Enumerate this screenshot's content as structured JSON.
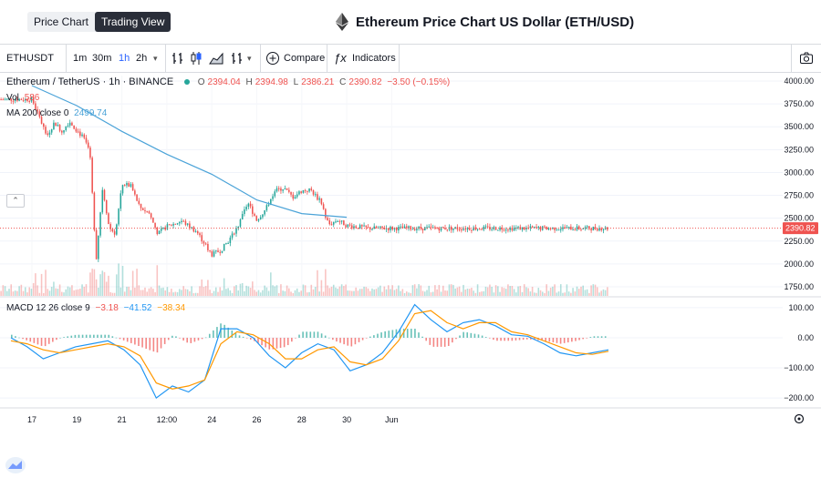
{
  "header": {
    "tabs": [
      {
        "label": "Price Chart",
        "active": false
      },
      {
        "label": "Trading View",
        "active": true
      }
    ],
    "title": "Ethereum Price Chart US Dollar (ETH/USD)"
  },
  "toolbar": {
    "symbol": "ETHUSDT",
    "intervals": [
      "1m",
      "30m",
      "1h",
      "2h"
    ],
    "active_interval": "1h",
    "compare_label": "Compare",
    "indicators_label": "Indicators"
  },
  "legend": {
    "name": "Ethereum / TetherUS · 1h · BINANCE",
    "ohlc": {
      "o_label": "O",
      "o": "2394.04",
      "h_label": "H",
      "h": "2394.98",
      "l_label": "L",
      "l": "2386.21",
      "c_label": "C",
      "c": "2390.82",
      "change": "−3.50 (−0.15%)"
    },
    "vol_label": "Vol",
    "vol_value": "586",
    "ma_label": "MA 200 close 0",
    "ma_value": "2499.74",
    "macd_label": "MACD 12 26 close 9",
    "macd_values": [
      "−3.18",
      "−41.52",
      "−38.34"
    ]
  },
  "colors": {
    "up": "#26a69a",
    "down": "#ef5350",
    "ma": "#4ba3d8",
    "macd": "#2196f3",
    "signal": "#ff9800",
    "price_tag": "#ef5350"
  },
  "chart_data": [
    {
      "type": "candlestick",
      "title": "Ethereum / TetherUS · 1h · BINANCE",
      "x_tick_labels": [
        "17",
        "19",
        "21",
        "12:00",
        "24",
        "26",
        "28",
        "30",
        "Jun"
      ],
      "y_tick_labels": [
        "4000.00",
        "3750.00",
        "3500.00",
        "3250.00",
        "3000.00",
        "2750.00",
        "2500.00",
        "2250.00",
        "2000.00",
        "1750.00"
      ],
      "ylim": [
        1650,
        4060
      ],
      "last_price": "2390.82",
      "price_path": [
        [
          "17",
          3800
        ],
        [
          "17",
          3600
        ],
        [
          "17",
          3400
        ],
        [
          "17",
          3550
        ],
        [
          "17",
          3450
        ],
        [
          "17",
          3560
        ],
        [
          "19",
          3460
        ],
        [
          "19",
          3380
        ],
        [
          "19",
          3230
        ],
        [
          "19",
          2050
        ],
        [
          "19",
          2840
        ],
        [
          "19",
          2400
        ],
        [
          "19",
          2330
        ],
        [
          "21",
          2880
        ],
        [
          "21",
          2850
        ],
        [
          "21",
          2620
        ],
        [
          "21",
          2560
        ],
        [
          "21",
          2330
        ],
        [
          "12:00",
          2410
        ],
        [
          "12:00",
          2470
        ],
        [
          "12:00",
          2350
        ],
        [
          "24",
          2100
        ],
        [
          "24",
          2150
        ],
        [
          "24",
          2270
        ],
        [
          "24",
          2430
        ],
        [
          "24",
          2670
        ],
        [
          "26",
          2480
        ],
        [
          "26",
          2600
        ],
        [
          "26",
          2800
        ],
        [
          "26",
          2830
        ],
        [
          "26",
          2730
        ],
        [
          "28",
          2800
        ],
        [
          "28",
          2810
        ],
        [
          "28",
          2690
        ],
        [
          "28",
          2430
        ],
        [
          "28",
          2480
        ],
        [
          "30",
          2420
        ],
        [
          "30",
          2390
        ]
      ],
      "ma200_path": [
        [
          "17",
          3950
        ],
        [
          "19",
          3730
        ],
        [
          "21",
          3450
        ],
        [
          "12:00",
          3200
        ],
        [
          "24",
          2980
        ],
        [
          "26",
          2700
        ],
        [
          "28",
          2550
        ],
        [
          "30",
          2510
        ]
      ],
      "volume": {
        "label": "Vol",
        "last": "586"
      }
    },
    {
      "type": "line",
      "title": "MACD 12 26 close 9",
      "y_tick_labels": [
        "100.00",
        "0.00",
        "−100.00",
        "−200.00"
      ],
      "ylim": [
        -230,
        130
      ],
      "series": [
        {
          "name": "MACD",
          "values": [
            0,
            -30,
            -70,
            -50,
            -30,
            -20,
            -10,
            -40,
            -90,
            -200,
            -160,
            -180,
            -140,
            30,
            30,
            0,
            -60,
            -100,
            -50,
            -20,
            -40,
            -110,
            -90,
            -50,
            20,
            110,
            60,
            20,
            50,
            60,
            40,
            10,
            5,
            -20,
            -50,
            -60,
            -50,
            -40
          ]
        },
        {
          "name": "Signal",
          "values": [
            -10,
            -20,
            -40,
            -50,
            -40,
            -30,
            -20,
            -30,
            -60,
            -150,
            -170,
            -160,
            -140,
            -20,
            20,
            10,
            -20,
            -70,
            -70,
            -40,
            -30,
            -80,
            -90,
            -70,
            -10,
            80,
            90,
            50,
            30,
            50,
            50,
            20,
            10,
            -10,
            -30,
            -50,
            -55,
            -45
          ]
        }
      ]
    }
  ]
}
